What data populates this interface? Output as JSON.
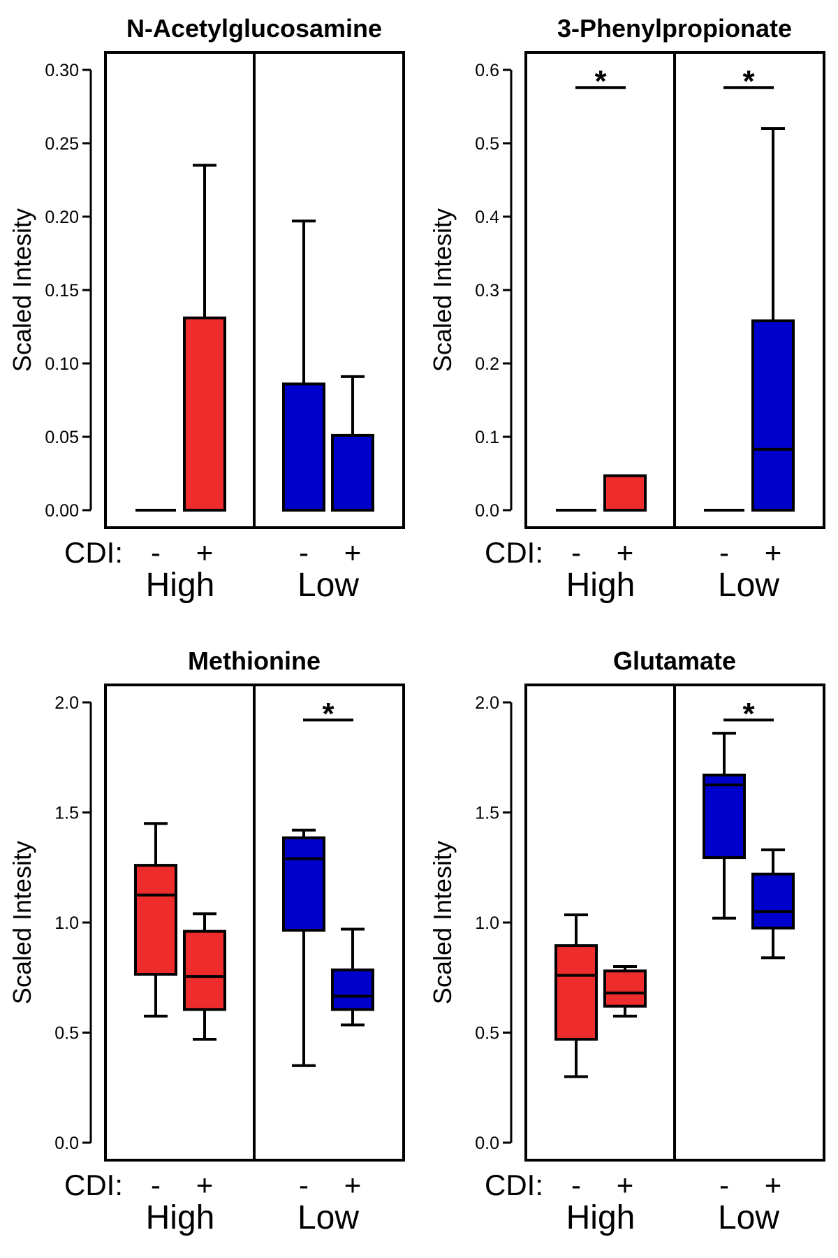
{
  "chart_data": [
    {
      "type": "box",
      "title": "N-Acetylglucosamine",
      "ylabel": "Scaled Intesity",
      "ylim": [
        0,
        0.3
      ],
      "yticks": [
        0.0,
        0.05,
        0.1,
        0.15,
        0.2,
        0.25,
        0.3
      ],
      "ytick_labels": [
        "0.00",
        "0.05",
        "0.10",
        "0.15",
        "0.20",
        "0.25",
        "0.30"
      ],
      "x_prefix": "CDI:",
      "groups": [
        {
          "label": "High",
          "cdi_labels": [
            "-",
            "+"
          ]
        },
        {
          "label": "Low",
          "cdi_labels": [
            "-",
            "+"
          ]
        }
      ],
      "boxes": [
        {
          "group": "High",
          "cdi": "-",
          "color": "#ee2c2c",
          "min": 0,
          "q1": 0,
          "median": 0,
          "q3": 0,
          "max": 0
        },
        {
          "group": "High",
          "cdi": "+",
          "color": "#ee2c2c",
          "min": 0,
          "q1": 0,
          "median": 0,
          "q3": 0.131,
          "max": 0.235
        },
        {
          "group": "Low",
          "cdi": "-",
          "color": "#0000cd",
          "min": 0,
          "q1": 0,
          "median": 0,
          "q3": 0.086,
          "max": 0.197
        },
        {
          "group": "Low",
          "cdi": "+",
          "color": "#0000cd",
          "min": 0,
          "q1": 0,
          "median": 0,
          "q3": 0.051,
          "max": 0.091
        }
      ],
      "significance": []
    },
    {
      "type": "box",
      "title": "3-Phenylpropionate",
      "ylabel": "Scaled Intesity",
      "ylim": [
        0,
        0.6
      ],
      "yticks": [
        0.0,
        0.1,
        0.2,
        0.3,
        0.4,
        0.5,
        0.6
      ],
      "ytick_labels": [
        "0.0",
        "0.1",
        "0.2",
        "0.3",
        "0.4",
        "0.5",
        "0.6"
      ],
      "x_prefix": "CDI:",
      "groups": [
        {
          "label": "High",
          "cdi_labels": [
            "-",
            "+"
          ]
        },
        {
          "label": "Low",
          "cdi_labels": [
            "-",
            "+"
          ]
        }
      ],
      "boxes": [
        {
          "group": "High",
          "cdi": "-",
          "color": "#ee2c2c",
          "min": 0,
          "q1": 0,
          "median": 0,
          "q3": 0,
          "max": 0
        },
        {
          "group": "High",
          "cdi": "+",
          "color": "#ee2c2c",
          "min": 0,
          "q1": 0,
          "median": 0,
          "q3": 0.047,
          "max": 0.047
        },
        {
          "group": "Low",
          "cdi": "-",
          "color": "#0000cd",
          "min": 0,
          "q1": 0,
          "median": 0,
          "q3": 0,
          "max": 0
        },
        {
          "group": "Low",
          "cdi": "+",
          "color": "#0000cd",
          "min": 0,
          "q1": 0,
          "median": 0.083,
          "q3": 0.258,
          "max": 0.52
        }
      ],
      "significance": [
        {
          "group": "High",
          "label": "*",
          "y": 0.576
        },
        {
          "group": "Low",
          "label": "*",
          "y": 0.576
        }
      ]
    },
    {
      "type": "box",
      "title": "Methionine",
      "ylabel": "Scaled Intesity",
      "ylim": [
        0,
        2.0
      ],
      "yticks": [
        0.0,
        0.5,
        1.0,
        1.5,
        2.0
      ],
      "ytick_labels": [
        "0.0",
        "0.5",
        "1.0",
        "1.5",
        "2.0"
      ],
      "x_prefix": "CDI:",
      "groups": [
        {
          "label": "High",
          "cdi_labels": [
            "-",
            "+"
          ]
        },
        {
          "label": "Low",
          "cdi_labels": [
            "-",
            "+"
          ]
        }
      ],
      "boxes": [
        {
          "group": "High",
          "cdi": "-",
          "color": "#ee2c2c",
          "min": 0.575,
          "q1": 0.765,
          "median": 1.125,
          "q3": 1.26,
          "max": 1.45
        },
        {
          "group": "High",
          "cdi": "+",
          "color": "#ee2c2c",
          "min": 0.47,
          "q1": 0.605,
          "median": 0.755,
          "q3": 0.96,
          "max": 1.04
        },
        {
          "group": "Low",
          "cdi": "-",
          "color": "#0000cd",
          "min": 0.35,
          "q1": 0.965,
          "median": 1.29,
          "q3": 1.385,
          "max": 1.42
        },
        {
          "group": "Low",
          "cdi": "+",
          "color": "#0000cd",
          "min": 0.535,
          "q1": 0.605,
          "median": 0.665,
          "q3": 0.785,
          "max": 0.97
        }
      ],
      "significance": [
        {
          "group": "Low",
          "label": "*",
          "y": 1.92
        }
      ]
    },
    {
      "type": "box",
      "title": "Glutamate",
      "ylabel": "Scaled Intesity",
      "ylim": [
        0,
        2.0
      ],
      "yticks": [
        0.0,
        0.5,
        1.0,
        1.5,
        2.0
      ],
      "ytick_labels": [
        "0.0",
        "0.5",
        "1.0",
        "1.5",
        "2.0"
      ],
      "x_prefix": "CDI:",
      "groups": [
        {
          "label": "High",
          "cdi_labels": [
            "-",
            "+"
          ]
        },
        {
          "label": "Low",
          "cdi_labels": [
            "-",
            "+"
          ]
        }
      ],
      "boxes": [
        {
          "group": "High",
          "cdi": "-",
          "color": "#ee2c2c",
          "min": 0.3,
          "q1": 0.47,
          "median": 0.76,
          "q3": 0.895,
          "max": 1.035
        },
        {
          "group": "High",
          "cdi": "+",
          "color": "#ee2c2c",
          "min": 0.575,
          "q1": 0.62,
          "median": 0.68,
          "q3": 0.78,
          "max": 0.8
        },
        {
          "group": "Low",
          "cdi": "-",
          "color": "#0000cd",
          "min": 1.02,
          "q1": 1.295,
          "median": 1.625,
          "q3": 1.67,
          "max": 1.86
        },
        {
          "group": "Low",
          "cdi": "+",
          "color": "#0000cd",
          "min": 0.84,
          "q1": 0.975,
          "median": 1.05,
          "q3": 1.22,
          "max": 1.33
        }
      ],
      "significance": [
        {
          "group": "Low",
          "label": "*",
          "y": 1.92
        }
      ]
    }
  ]
}
